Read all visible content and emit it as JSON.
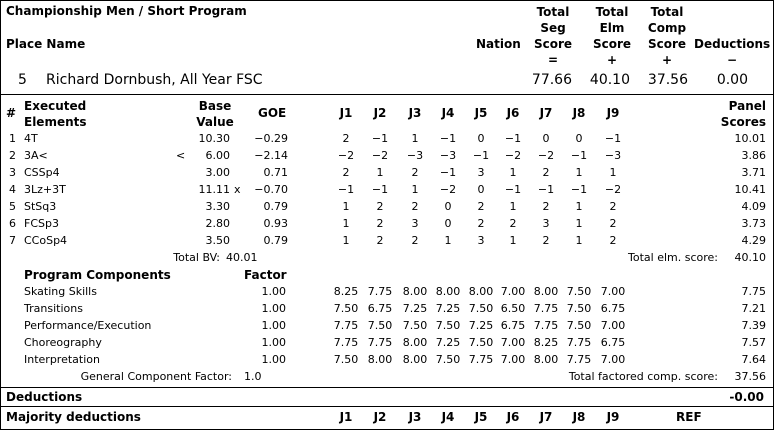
{
  "title": "Championship Men / Short Program",
  "header": {
    "place_name": "Place Name",
    "nation": "Nation",
    "tss": [
      "Total",
      "Seg",
      "Score",
      "="
    ],
    "tes": [
      "Total",
      "Elm",
      "Score",
      "+"
    ],
    "pcs": [
      "Total",
      "Comp",
      "Score",
      "+"
    ],
    "ded": [
      "Deductions",
      "−"
    ]
  },
  "skater": {
    "place": "5",
    "name": "Richard Dornbush, All Year FSC",
    "tss": "77.66",
    "tes": "40.10",
    "pcs": "37.56",
    "ded": "0.00"
  },
  "elem_header": {
    "num": "#",
    "exec1": "Executed",
    "exec2": "Elements",
    "bv1": "Base",
    "bv2": "Value",
    "goe": "GOE",
    "judges": [
      "J1",
      "J2",
      "J3",
      "J4",
      "J5",
      "J6",
      "J7",
      "J8",
      "J9"
    ],
    "ps1": "Panel",
    "ps2": "Scores"
  },
  "elements": [
    {
      "n": "1",
      "code": "4T",
      "info": "",
      "bv": "10.30",
      "x": "",
      "goe": "−0.29",
      "j": [
        "2",
        "−1",
        "1",
        "−1",
        "0",
        "−1",
        "0",
        "0",
        "−1"
      ],
      "score": "10.01"
    },
    {
      "n": "2",
      "code": "3A<",
      "info": "<",
      "bv": "6.00",
      "x": "",
      "goe": "−2.14",
      "j": [
        "−2",
        "−2",
        "−3",
        "−3",
        "−1",
        "−2",
        "−2",
        "−1",
        "−3"
      ],
      "score": "3.86"
    },
    {
      "n": "3",
      "code": "CSSp4",
      "info": "",
      "bv": "3.00",
      "x": "",
      "goe": "0.71",
      "j": [
        "2",
        "1",
        "2",
        "−1",
        "3",
        "1",
        "2",
        "1",
        "1"
      ],
      "score": "3.71"
    },
    {
      "n": "4",
      "code": "3Lz+3T",
      "info": "",
      "bv": "11.11",
      "x": "x",
      "goe": "−0.70",
      "j": [
        "−1",
        "−1",
        "1",
        "−2",
        "0",
        "−1",
        "−1",
        "−1",
        "−2"
      ],
      "score": "10.41"
    },
    {
      "n": "5",
      "code": "StSq3",
      "info": "",
      "bv": "3.30",
      "x": "",
      "goe": "0.79",
      "j": [
        "1",
        "2",
        "2",
        "0",
        "2",
        "1",
        "2",
        "1",
        "2"
      ],
      "score": "4.09"
    },
    {
      "n": "6",
      "code": "FCSp3",
      "info": "",
      "bv": "2.80",
      "x": "",
      "goe": "0.93",
      "j": [
        "1",
        "2",
        "3",
        "0",
        "2",
        "2",
        "3",
        "1",
        "2"
      ],
      "score": "3.73"
    },
    {
      "n": "7",
      "code": "CCoSp4",
      "info": "",
      "bv": "3.50",
      "x": "",
      "goe": "0.79",
      "j": [
        "1",
        "2",
        "2",
        "1",
        "3",
        "1",
        "2",
        "1",
        "2"
      ],
      "score": "4.29"
    }
  ],
  "total_bv_label": "Total BV:",
  "total_bv": "40.01",
  "total_elm_label": "Total elm. score:",
  "total_elm": "40.10",
  "pc_header": {
    "label": "Program Components",
    "factor": "Factor"
  },
  "components": [
    {
      "name": "Skating Skills",
      "factor": "1.00",
      "j": [
        "8.25",
        "7.75",
        "8.00",
        "8.00",
        "8.00",
        "7.00",
        "8.00",
        "7.50",
        "7.00"
      ],
      "score": "7.75"
    },
    {
      "name": "Transitions",
      "factor": "1.00",
      "j": [
        "7.50",
        "6.75",
        "7.25",
        "7.25",
        "7.50",
        "6.50",
        "7.75",
        "7.50",
        "6.75"
      ],
      "score": "7.21"
    },
    {
      "name": "Performance/Execution",
      "factor": "1.00",
      "j": [
        "7.75",
        "7.50",
        "7.50",
        "7.50",
        "7.25",
        "6.75",
        "7.75",
        "7.50",
        "7.00"
      ],
      "score": "7.39"
    },
    {
      "name": "Choreography",
      "factor": "1.00",
      "j": [
        "7.75",
        "7.75",
        "8.00",
        "7.25",
        "7.50",
        "7.00",
        "8.25",
        "7.75",
        "6.75"
      ],
      "score": "7.57"
    },
    {
      "name": "Interpretation",
      "factor": "1.00",
      "j": [
        "7.50",
        "8.00",
        "8.00",
        "7.50",
        "7.75",
        "7.00",
        "8.00",
        "7.75",
        "7.00"
      ],
      "score": "7.64"
    }
  ],
  "gcf_label": "General Component Factor:",
  "gcf": "1.0",
  "total_comp_label": "Total factored comp. score:",
  "total_comp": "37.56",
  "deductions_label": "Deductions",
  "deductions_value": "-0.00",
  "majority_label": "Majority deductions",
  "majority_ref": "REF"
}
